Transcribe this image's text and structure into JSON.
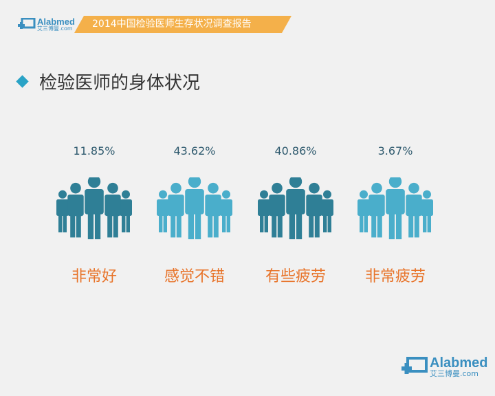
{
  "header": {
    "logo_name": "Alabmed",
    "logo_cn": "艾三博曼",
    "logo_com": ".com",
    "banner": "2014中国检验医师生存状况调查报告"
  },
  "title": "检验医师的身体状况",
  "items": [
    {
      "percent": "11.85%",
      "label": "非常好",
      "color": "#2f7f96"
    },
    {
      "percent": "43.62%",
      "label": "感觉不错",
      "color": "#4aaecb"
    },
    {
      "percent": "40.86%",
      "label": "有些疲劳",
      "color": "#2f7f96"
    },
    {
      "percent": "3.67%",
      "label": "非常疲劳",
      "color": "#4aaecb"
    }
  ],
  "footer": {
    "logo_name": "Alabmed",
    "logo_cn": "艾三博曼",
    "logo_com": ".com"
  },
  "colors": {
    "accent": "#2aa3c6",
    "orange": "#e8742a",
    "banner": "#f4b04a"
  }
}
